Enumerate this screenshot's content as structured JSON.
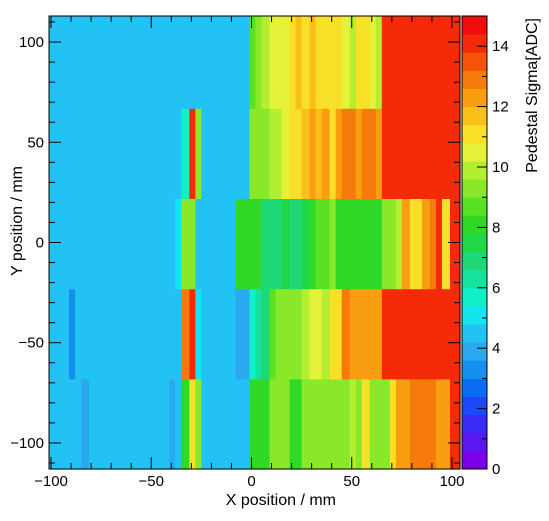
{
  "chart_data": {
    "type": "heatmap",
    "xlabel": "X position / mm",
    "ylabel": "Y position / mm",
    "zlabel": "Pedestal Sigma[ADC]",
    "xlim": [
      -101,
      104
    ],
    "ylim": [
      -113,
      113
    ],
    "zlim": [
      0,
      15
    ],
    "x_ticks": [
      -100,
      -50,
      0,
      50,
      100
    ],
    "y_ticks": [
      -100,
      -50,
      0,
      50,
      100
    ],
    "z_ticks": [
      0,
      2,
      4,
      6,
      8,
      10,
      12,
      14
    ],
    "grid": false,
    "palette": [
      "#7b00e8",
      "#5a18f0",
      "#3a2cf6",
      "#1d48f8",
      "#0b6cf4",
      "#1690ee",
      "#2aa8f0",
      "#22c2f4",
      "#12e4f0",
      "#10f0c8",
      "#16e2a0",
      "#1ed878",
      "#1ed848",
      "#30d828",
      "#58e222",
      "#8ae82a",
      "#b4ee30",
      "#e6f23a",
      "#f8e028",
      "#f8c018",
      "#f89e10",
      "#f77a0c",
      "#f65208",
      "#f42a08",
      "#f20c0c"
    ],
    "x_edges": [
      -101,
      -98,
      -95,
      -91,
      -88,
      -85,
      -81,
      -78,
      -75,
      -71,
      -68,
      -65,
      -61,
      -58,
      -55,
      -51,
      -48,
      -45,
      -41,
      -38,
      -35,
      -31,
      -28,
      -25,
      -21,
      -18,
      -15,
      -11,
      -8,
      -5,
      -1,
      2,
      5,
      9,
      12,
      15,
      19,
      22,
      25,
      29,
      32,
      35,
      39,
      42,
      45,
      49,
      52,
      55,
      59,
      62,
      65,
      69,
      72,
      75,
      79,
      82,
      85,
      89,
      92,
      95,
      99,
      104
    ],
    "y_edges": [
      -113,
      -68,
      -23,
      22,
      67,
      113
    ],
    "z_values": [
      [
        4.6,
        4.6,
        4.6,
        4.6,
        4.6,
        4.0,
        4.6,
        4.6,
        4.6,
        4.6,
        4.6,
        4.6,
        4.6,
        4.6,
        4.6,
        4.6,
        4.6,
        4.6,
        3.6,
        4.6,
        8.0,
        11.0,
        9.0,
        4.6,
        4.6,
        4.6,
        4.6,
        4.6,
        4.6,
        4.6,
        8.0,
        8.0,
        8.0,
        9.0,
        9.0,
        9.0,
        8.0,
        8.0,
        9.0,
        9.0,
        9.0,
        9.0,
        9.0,
        9.0,
        9.0,
        10.0,
        9.0,
        11.0,
        9.0,
        9.0,
        9.0,
        11.0,
        12.0,
        12.0,
        13.0,
        13.0,
        13.0,
        13.0,
        12.0,
        12.0,
        14.0
      ],
      [
        4.2,
        4.2,
        4.2,
        3.0,
        4.2,
        4.2,
        4.2,
        4.2,
        4.2,
        4.2,
        4.2,
        4.2,
        4.2,
        4.2,
        4.2,
        4.2,
        4.2,
        4.2,
        4.2,
        4.2,
        13.0,
        14.0,
        5.0,
        4.6,
        4.6,
        4.6,
        4.6,
        4.6,
        3.6,
        3.6,
        5.5,
        6.5,
        7.0,
        8.5,
        9.0,
        9.0,
        9.0,
        9.5,
        10.0,
        10.5,
        10.5,
        10.0,
        11.0,
        11.0,
        13.0,
        12.5,
        12.5,
        12.0,
        12.0,
        12.5,
        14.0,
        14.0,
        14.0,
        14.0,
        14.0,
        14.0,
        14.0,
        14.0,
        14.0,
        14.0,
        14.0
      ],
      [
        4.2,
        4.2,
        4.2,
        4.2,
        4.2,
        4.2,
        4.2,
        4.2,
        4.2,
        4.2,
        4.2,
        4.2,
        4.2,
        4.2,
        4.2,
        4.2,
        4.2,
        4.2,
        4.2,
        4.8,
        9.5,
        9.5,
        4.2,
        4.2,
        4.2,
        4.2,
        4.2,
        4.2,
        8.0,
        8.0,
        8.0,
        8.0,
        7.0,
        7.0,
        7.0,
        7.5,
        7.0,
        7.0,
        7.5,
        8.0,
        8.5,
        8.5,
        9.0,
        8.0,
        8.0,
        8.0,
        8.0,
        8.0,
        8.0,
        8.0,
        9.0,
        9.0,
        10.0,
        12.0,
        11.0,
        11.0,
        12.0,
        13.0,
        14.0,
        11.0,
        14.0
      ],
      [
        4.2,
        4.2,
        4.2,
        4.2,
        4.2,
        4.2,
        4.2,
        4.2,
        4.2,
        4.2,
        4.2,
        4.2,
        4.2,
        4.2,
        4.2,
        4.2,
        4.2,
        4.2,
        4.6,
        4.6,
        5.5,
        14.0,
        9.0,
        4.6,
        4.6,
        4.6,
        4.6,
        4.6,
        4.6,
        4.6,
        9.0,
        9.0,
        9.5,
        10.0,
        10.0,
        10.5,
        11.0,
        11.0,
        11.5,
        12.0,
        11.5,
        12.0,
        11.0,
        12.0,
        13.0,
        13.0,
        12.0,
        13.0,
        13.0,
        12.0,
        14.0,
        14.0,
        14.0,
        14.0,
        14.0,
        14.0,
        14.0,
        14.0,
        14.0,
        14.0,
        14.0
      ],
      [
        4.2,
        4.2,
        4.2,
        4.2,
        4.2,
        4.2,
        4.2,
        4.2,
        4.2,
        4.2,
        4.2,
        4.2,
        4.2,
        4.2,
        4.2,
        4.2,
        4.2,
        4.6,
        4.6,
        4.6,
        4.6,
        4.6,
        4.6,
        4.2,
        4.2,
        4.2,
        4.2,
        4.2,
        4.2,
        4.2,
        8.5,
        9.5,
        10.0,
        10.5,
        10.5,
        10.5,
        11.0,
        11.5,
        11.0,
        11.5,
        11.0,
        11.0,
        11.0,
        11.0,
        10.5,
        10.0,
        11.0,
        11.0,
        10.5,
        10.0,
        14.0,
        14.0,
        14.0,
        14.0,
        14.0,
        14.0,
        14.0,
        14.0,
        14.0,
        14.0,
        14.0
      ]
    ]
  }
}
